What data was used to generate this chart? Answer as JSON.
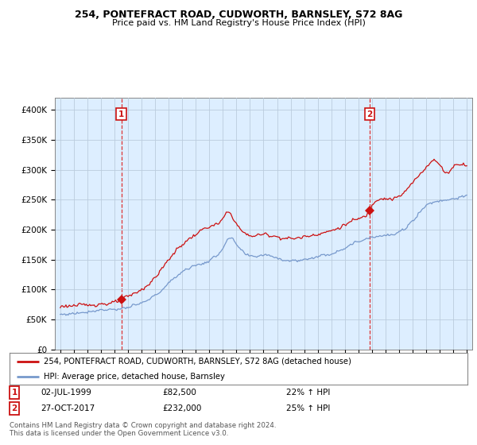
{
  "title1": "254, PONTEFRACT ROAD, CUDWORTH, BARNSLEY, S72 8AG",
  "title2": "Price paid vs. HM Land Registry's House Price Index (HPI)",
  "sale1_date": "02-JUL-1999",
  "sale1_price": 82500,
  "sale1_label": "£82,500",
  "sale1_pct": "22% ↑ HPI",
  "sale2_date": "27-OCT-2017",
  "sale2_price": 232000,
  "sale2_label": "£232,000",
  "sale2_pct": "25% ↑ HPI",
  "legend1": "254, PONTEFRACT ROAD, CUDWORTH, BARNSLEY, S72 8AG (detached house)",
  "legend2": "HPI: Average price, detached house, Barnsley",
  "footnote": "Contains HM Land Registry data © Crown copyright and database right 2024.\nThis data is licensed under the Open Government Licence v3.0.",
  "sale1_year": 1999.5,
  "sale2_year": 2017.83,
  "hpi_color": "#7799cc",
  "price_color": "#cc1111",
  "marker_color": "#cc1111",
  "grid_color": "#bbccdd",
  "bg_color": "#ffffff",
  "chart_bg": "#ddeeff",
  "ylim_min": 0,
  "ylim_max": 420000,
  "yticks": [
    0,
    50000,
    100000,
    150000,
    200000,
    250000,
    300000,
    350000,
    400000
  ],
  "ytick_labels": [
    "£0",
    "£50K",
    "£100K",
    "£150K",
    "£200K",
    "£250K",
    "£300K",
    "£350K",
    "£400K"
  ]
}
